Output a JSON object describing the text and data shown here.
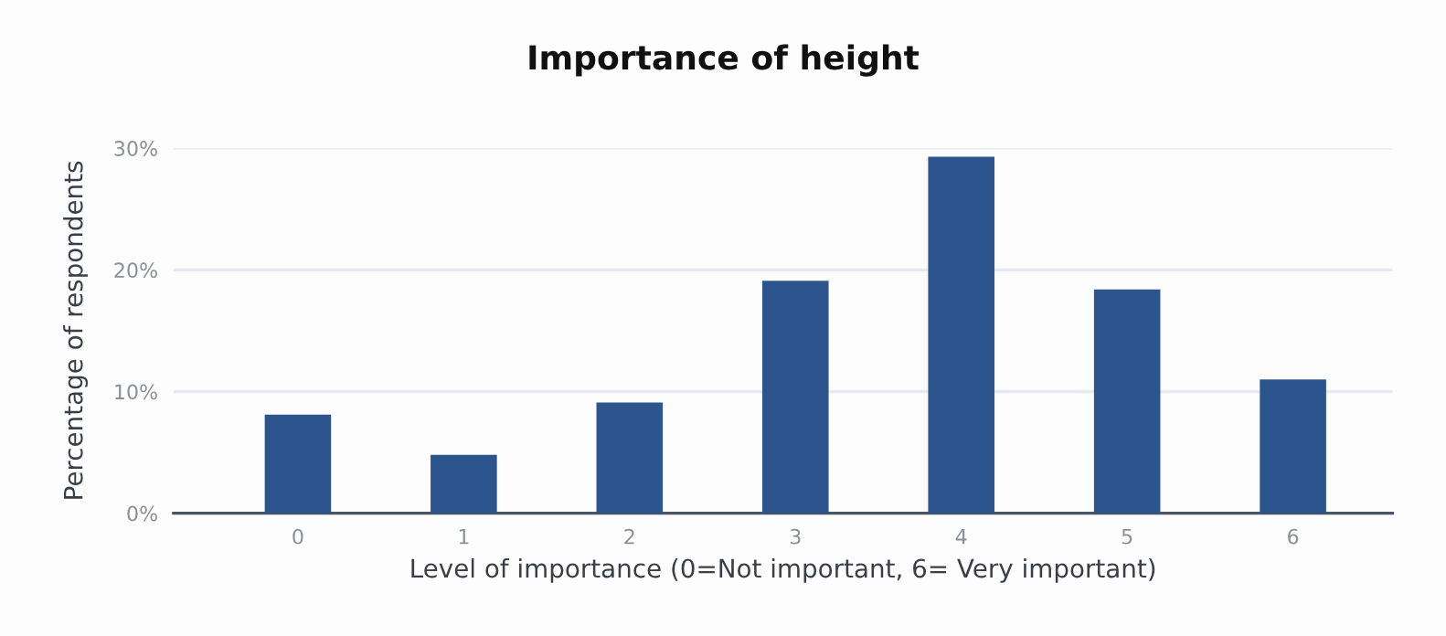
{
  "chart_data": {
    "type": "bar",
    "title": "Importance of height",
    "xlabel": "Level of importance (0=Not important, 6= Very important)",
    "ylabel": "Percentage of respondents",
    "categories": [
      "0",
      "1",
      "2",
      "3",
      "4",
      "5",
      "6"
    ],
    "values": [
      8.1,
      4.8,
      9.1,
      19.1,
      29.3,
      18.4,
      11.0
    ],
    "color": "#2b558c",
    "ylim": [
      0,
      30
    ],
    "yticks": [
      {
        "value": 0,
        "label": "0%"
      },
      {
        "value": 10,
        "label": "10%"
      },
      {
        "value": 20,
        "label": "20%"
      },
      {
        "value": 30,
        "label": "30%"
      }
    ],
    "grid": "y",
    "legend": false
  }
}
